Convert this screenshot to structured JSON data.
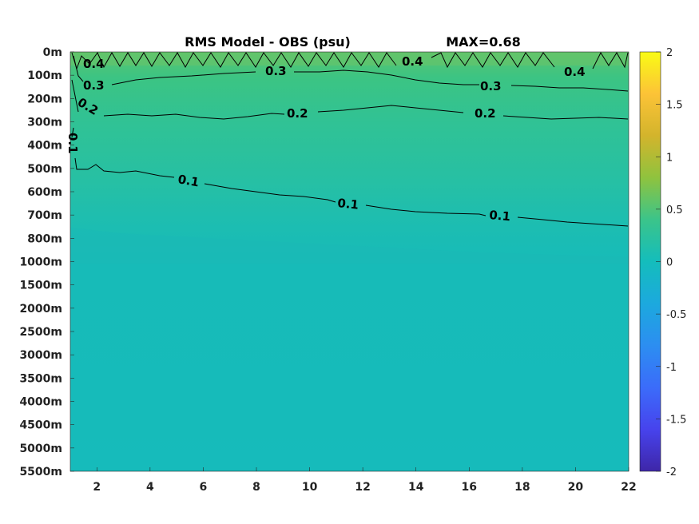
{
  "chart_data": {
    "type": "heatmap",
    "title": "RMS Model - OBS (psu)",
    "annotation": "MAX=0.68",
    "xlabel": "",
    "ylabel": "",
    "x_range": [
      1,
      22
    ],
    "x_ticks": [
      2,
      4,
      6,
      8,
      10,
      12,
      14,
      16,
      18,
      20,
      22
    ],
    "y_ticks": [
      "0m",
      "100m",
      "200m",
      "300m",
      "400m",
      "500m",
      "600m",
      "700m",
      "800m",
      "1000m",
      "1500m",
      "2000m",
      "2500m",
      "3000m",
      "3500m",
      "4000m",
      "4500m",
      "5000m",
      "5500m"
    ],
    "colorbar": {
      "range": [
        -2,
        2
      ],
      "ticks": [
        "2",
        "1.5",
        "1",
        "0.5",
        "0",
        "-0.5",
        "-1",
        "-1.5",
        "-2"
      ],
      "colormap": [
        "#3e26a8",
        "#4743ed",
        "#3b6cfa",
        "#2c8ef1",
        "#1ca9de",
        "#14bdbc",
        "#3bc48a",
        "#8fc33e",
        "#d3b42c",
        "#fcc337",
        "#f9fb15"
      ]
    },
    "background_field_at_depth": [
      {
        "depth": "0m",
        "value": 0.42
      },
      {
        "depth": "100m",
        "value": 0.34
      },
      {
        "depth": "200m",
        "value": 0.26
      },
      {
        "depth": "300m",
        "value": 0.2
      },
      {
        "depth": "500m",
        "value": 0.14
      },
      {
        "depth": "700m",
        "value": 0.1
      },
      {
        "depth": "800m",
        "value": 0.07
      },
      {
        "depth": "1000m",
        "value": 0.04
      },
      {
        "depth": "5500m",
        "value": 0.02
      }
    ],
    "contours": [
      {
        "level": 0.4,
        "label": "0.4",
        "depth_profile": [
          {
            "x": 1,
            "depth": "50m"
          },
          {
            "x": 22,
            "depth": "50m"
          }
        ]
      },
      {
        "level": 0.3,
        "label": "0.3",
        "depth_profile": [
          {
            "x": 1,
            "depth": "100m"
          },
          {
            "x": 12,
            "depth": "100m"
          },
          {
            "x": 22,
            "depth": "170m"
          }
        ]
      },
      {
        "level": 0.2,
        "label": "0.2",
        "depth_profile": [
          {
            "x": 2,
            "depth": "270m"
          },
          {
            "x": 22,
            "depth": "280m"
          }
        ]
      },
      {
        "level": 0.1,
        "label": "0.1",
        "depth_profile": [
          {
            "x": 1,
            "depth": "480m"
          },
          {
            "x": 8,
            "depth": "570m"
          },
          {
            "x": 15,
            "depth": "670m"
          },
          {
            "x": 22,
            "depth": "720m"
          }
        ]
      }
    ]
  }
}
